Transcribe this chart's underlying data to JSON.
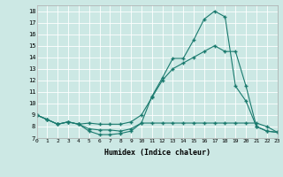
{
  "xlabel": "Humidex (Indice chaleur)",
  "background_color": "#cce8e4",
  "grid_color": "#ffffff",
  "line_color": "#1a7a6e",
  "x_values": [
    0,
    1,
    2,
    3,
    4,
    5,
    6,
    7,
    8,
    9,
    10,
    11,
    12,
    13,
    14,
    15,
    16,
    17,
    18,
    19,
    20,
    21,
    22,
    23
  ],
  "series": [
    [
      9.0,
      8.6,
      8.2,
      8.4,
      8.2,
      7.6,
      7.3,
      7.3,
      7.4,
      7.6,
      8.3,
      10.6,
      12.2,
      13.9,
      13.9,
      15.5,
      17.3,
      18.0,
      17.5,
      11.5,
      10.2,
      8.0,
      7.6,
      7.5
    ],
    [
      9.0,
      8.6,
      8.2,
      8.4,
      8.2,
      8.3,
      8.2,
      8.2,
      8.2,
      8.4,
      9.0,
      10.5,
      12.0,
      13.0,
      13.5,
      14.0,
      14.5,
      15.0,
      14.5,
      14.5,
      11.5,
      8.0,
      7.6,
      7.5
    ],
    [
      9.0,
      8.6,
      8.2,
      8.4,
      8.2,
      7.8,
      7.7,
      7.7,
      7.6,
      7.8,
      8.3,
      8.3,
      8.3,
      8.3,
      8.3,
      8.3,
      8.3,
      8.3,
      8.3,
      8.3,
      8.3,
      8.3,
      8.0,
      7.5
    ]
  ],
  "xlim": [
    0,
    23
  ],
  "ylim": [
    7,
    18.5
  ],
  "yticks": [
    7,
    8,
    9,
    10,
    11,
    12,
    13,
    14,
    15,
    16,
    17,
    18
  ],
  "xticks": [
    0,
    1,
    2,
    3,
    4,
    5,
    6,
    7,
    8,
    9,
    10,
    11,
    12,
    13,
    14,
    15,
    16,
    17,
    18,
    19,
    20,
    21,
    22,
    23
  ]
}
